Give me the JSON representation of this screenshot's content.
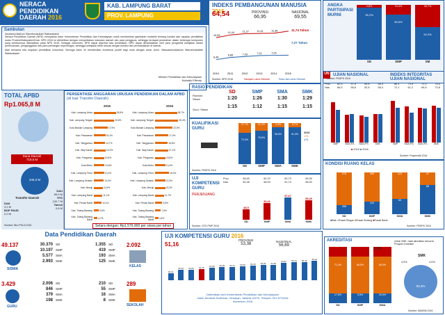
{
  "header": {
    "l1": "NERACA",
    "l2": "PENDIDIKAN",
    "l3": "DAERAH",
    "year": "2016",
    "kab": "KAB. LAMPUNG BARAT",
    "prov": "PROV. LAMPUNG"
  },
  "sambutan": {
    "title": "Sambutan",
    "p1": "Assalamu'alaikum Warrahmatullahi Wabarakatuh",
    "p2": "Neraca Pendidikan Daerah (NPD) merupakan Aktor Kementerian Pendidikan dan Kebudayaan untuk memberikan gambaran mutakhir tentang kondisi dan capaian pendidikan suatu Provinsi/Kabupaten/Kota. NPD 2016 ini diterbitkan dengan menyediakan masukan daerah dan para pengguna, sehingga terdapat perubahan dalam beberapa komponen yang sebelumnya ditampilkan pada NPD 2015. Sebagai instrumen, NPD dapat diperinci tata pendidikan, NPD dapat dimanfaatkan oleh para pengambil kebijakan dalam perencanaan, penganggaran dan para pemangku kepentingan, sehingga kebijakan lebih sesuai dengan kondisi dan permasalahan di daerah.",
    "p3": "Mari bersama kita majukan pendidikan Indonesia. Semoga Aktor ini memberikan kontribusi positif bagi mutu dengan amal. Amin. Wassalamu'alaikum Warrahmatullahi Wabarakatuh",
    "sig1": "Menteri Pendidikan dan Kebudayaan",
    "sig2": "Muhadjir Effendy"
  },
  "ipm": {
    "title": "INDEKS PEMBANGUNAN MANUSIA",
    "year": "2015",
    "kab_value": "64,54",
    "prov_label": "PROVINSI",
    "prov_value": "66,95",
    "nas_label": "NASIONAL",
    "nas_value": "69,55",
    "nas_right": "11,74 Tahun",
    "prov_right": "7,27 Tahun",
    "legend1": "Harapan Lama Sekolah",
    "legend2": "Rata-rata Lama Sekolah",
    "source": "Sumber: BPS 2016",
    "years": [
      "2010",
      "2011",
      "2012",
      "2013",
      "2014",
      "2015"
    ],
    "hls": [
      10.53,
      11.04,
      11.27,
      11.31,
      11.36,
      11.74
    ],
    "rls": [
      6.46,
      6.85,
      7.03,
      7.21,
      7.25,
      7.27
    ],
    "hls_labels": [
      "10,53",
      "11,04",
      "11,27",
      "11,31",
      "11,36"
    ],
    "rls_labels": [
      "6,46",
      "6,85",
      "7,03",
      "7,21",
      "7,25"
    ]
  },
  "apm": {
    "title1": "ANGKA",
    "title2": "PARTISIPASI",
    "title3": "MURNI",
    "cats": [
      "SD",
      "SMP",
      "SM"
    ],
    "vals": [
      "95,2%",
      "80,6%",
      "54,3%"
    ],
    "top": [
      "4,8%",
      "19,4%",
      "45,7%"
    ],
    "source": "Sumber: PDSPK 2016"
  },
  "total": {
    "title": "TOTAL APBD",
    "value": "Rp1.065,8 M",
    "dana": "Dana Daerah",
    "dana_val": "719,5 M",
    "transfer": "Transfer Daerah",
    "transfer_val": "346,3 M",
    "dau_label": "DAU",
    "dau": "89,9 M",
    "tpg_label": "TPG",
    "tpg": "132,7 M",
    "dak_label": "DAK",
    "dak": "3,2 M",
    "tamsil_label": "Tamsil",
    "tamsil": "0,8 M",
    "bop_label": "BOP PAUD",
    "bop": "2,0 M",
    "source": "Sumber: Biro PKLN 2016"
  },
  "pers": {
    "title": "PERSENTASE ANGGARAN URUSAN PENDIDIKAN DALAM APBD",
    "subtitle": "(di luar Transfer Daerah)",
    "y2015": "2015",
    "y2016": "2016",
    "footer": "Setara dengan: Rp1.576.900 per siswa per tahun",
    "left": [
      [
        "Kab. Lampung Utara",
        "28,8%"
      ],
      [
        "Kab. Lampung Tengah",
        "26,6%"
      ],
      [
        "Kota Bandar Lampung",
        "17,9%"
      ],
      [
        "Kab. Pesawaran",
        "15,1%"
      ],
      [
        "Kab. Tanggamus",
        "14,7%"
      ],
      [
        "Kab. Way Kanan",
        "15,3%"
      ],
      [
        "Kab. Pringsewu",
        "13,5%"
      ],
      [
        "Kota Metro",
        "13,8%"
      ],
      [
        "Kab. Lampung Timur",
        "13,4%"
      ],
      [
        "Kab. Lampung Selatan",
        "13,0%"
      ],
      [
        "Kab. Mesuji",
        "11,8%"
      ],
      [
        "Kab. Lampung Barat",
        "11,1%"
      ],
      [
        "Kab. Pesisir Barat",
        "10,1%"
      ],
      [
        "Kab. Tulang Bawang",
        "6,5%"
      ],
      [
        "Kab. Tulang Bawang Barat",
        "4,7%"
      ]
    ],
    "right": [
      [
        "Kab. Lampung Utara",
        "28,7%"
      ],
      [
        "Kab. Lampung Tengah",
        "30,4%"
      ],
      [
        "Kota Bandar Lampung",
        "22,9%"
      ],
      [
        "Kab. Pesawaran",
        "17,4%"
      ],
      [
        "Kab. Tanggamus",
        "16,6%"
      ],
      [
        "Kab. Way Kanan",
        "17,1%"
      ],
      [
        "Kab. Pringsewu",
        "13,6%"
      ],
      [
        "Kota Metro",
        "13,4%"
      ],
      [
        "Kab. Lampung Timur",
        "18,2%"
      ],
      [
        "Kab. Lampung Selatan",
        "13,3%"
      ],
      [
        "Kab. Mesuji",
        "13,2%"
      ],
      [
        "Kab. Lampung Barat",
        "11,7%"
      ],
      [
        "Kab. Pesisir Barat",
        "9,5%"
      ],
      [
        "Kab. Tulang Bawang",
        "7,6%"
      ],
      [
        "Kab. Tulang Bawang Barat",
        "4,4%"
      ]
    ]
  },
  "rasio": {
    "title": "RASIO PENDIDIKAN",
    "row1": "Rombel: Siswa",
    "row2": "Guru: Siswa",
    "cats": [
      "SD",
      "SMP",
      "SMA",
      "SMK"
    ],
    "r1": [
      "1:20",
      "1:26",
      "1:30",
      "1:29"
    ],
    "r2": [
      "1:15",
      "1:12",
      "1:15",
      "1:15"
    ]
  },
  "kual": {
    "title1": "KUALIFIKASI",
    "title2": "GURU",
    "cats": [
      "SD",
      "SMP",
      "SMA",
      "SMK"
    ],
    "top": [
      "27,7%",
      "21,2%",
      "3,4%",
      "8,7%"
    ],
    "bot": [
      "72,3%",
      "78,8%",
      "96,6%",
      "91,3%"
    ],
    "l1": "2016",
    "l2": "<S1",
    "l3": "≥S1",
    "source": "Sumber: PDSPK 2016"
  },
  "ukg": {
    "title1": "UJI",
    "title2": "KOMPETENSI",
    "title3": "GURU",
    "sub": "PERJENJANG",
    "prov_label": "Prov.",
    "prov": [
      "56,69",
      "60,70",
      "60,73",
      "59,39"
    ],
    "nas_label": "Nas.",
    "nas": [
      "54,38",
      "58,93",
      "61,74",
      "58,30"
    ],
    "vals": [
      "48,5",
      "53,41",
      "57,67",
      "55,49"
    ],
    "cats": [
      "SD",
      "SMP",
      "SMA",
      "SMK"
    ],
    "source": "Sumber: GTK-PMP 2016"
  },
  "un": {
    "title": "UJIAN NASIONAL",
    "title2": "INDEKS INTEGRITAS UJIAN NASIONAL",
    "prov": "Prov.",
    "nas": "Nas.",
    "prov_vals": [
      "82,5",
      "57,5",
      "55,8",
      "58,3"
    ],
    "nas_vals": [
      "66,9",
      "58,8",
      "52,8",
      "58,3"
    ],
    "prov2": [
      "86,4",
      "73,9",
      "72,0",
      "76,4"
    ],
    "nas2": [
      "72,1",
      "61,2",
      "69,8",
      "70,8"
    ],
    "cats": [
      "SMP",
      "SMA IPA",
      "SMA IPS",
      "SMK"
    ],
    "l15": "2015",
    "l16": "2016",
    "source": "Sumber: Puspendik 2016"
  },
  "kond": {
    "title": "KONDISI RUANG KELAS",
    "cats": [
      "SD",
      "SMP",
      "SMA",
      "SMK"
    ],
    "baik": [
      "265",
      "120",
      "69",
      "88"
    ],
    "rusak": [
      "978",
      "289",
      "123",
      "37"
    ],
    "l1": "Baik",
    "l2": "Rusak Ringan",
    "l3": "Rusak Sedang",
    "l4": "Rusak Berat",
    "source": "Sumber: PDSPK 2016"
  },
  "dpd": {
    "title": "Data Pendidikan Daerah",
    "siswa_total": "49.137",
    "siswa_label": "SISWA",
    "siswa": [
      [
        "SD",
        "30.370"
      ],
      [
        "SMP",
        "10.197"
      ],
      [
        "SMA",
        "5.577"
      ],
      [
        "SMK",
        "2.993"
      ]
    ],
    "kelas_total": "2.092",
    "kelas_label": "KELAS",
    "kelas": [
      [
        "SD",
        "1.355"
      ],
      [
        "SMP",
        "419"
      ],
      [
        "SMA",
        "193"
      ],
      [
        "SMK",
        "125"
      ]
    ],
    "guru_total": "3.429",
    "guru_label": "GURU",
    "guru": [
      [
        "SD",
        "2.006"
      ],
      [
        "SMP",
        "846"
      ],
      [
        "SMA",
        "379"
      ],
      [
        "SMK",
        "198"
      ]
    ],
    "sekolah_total": "289",
    "sekolah_label": "SEKOLAH",
    "sekolah": [
      [
        "SD",
        "210"
      ],
      [
        "SMP",
        "55"
      ],
      [
        "SMA",
        "16"
      ],
      [
        "SMK",
        "8"
      ]
    ]
  },
  "ukd": {
    "title": "UJI KOMPETENSI GURU",
    "year": "2016",
    "kab": "51,16",
    "prov_label": "PROVINSI",
    "prov": "53,38",
    "nas_label": "NASIONAL",
    "nas": "56,69",
    "vals": [
      48.42,
      50.33,
      50.63,
      51.16,
      51.68,
      52.09,
      52.17,
      52.5,
      53.18,
      53.65,
      53.65,
      54.91,
      55.44,
      55.49,
      56.24
    ],
    "labels": [
      "48,42",
      "50,33",
      "50,63",
      "51,16",
      "51,68",
      "52,09",
      "52,17",
      "52,50",
      "53,18",
      "53,65",
      "53,65",
      "54,91",
      "55,44",
      "55,49",
      "56,24"
    ],
    "footer1": "Diterbitkan oleh Kementerian Pendidikan dan Kebudayaan",
    "footer2": "Jalan Jenderal Sudirman, Senayan, Jakarta 10270, Telepon: 021-5711144",
    "footer3": "November 2016"
  },
  "akr": {
    "title": "AKREDITASI",
    "note": "Untuk SMK, hasil akreditasi menurut Program Keahlian",
    "cats": [
      "SD",
      "SMP",
      "SMA"
    ],
    "smk": "SMK",
    "A": [
      "17,6%",
      "5,5%",
      "20,0%"
    ],
    "B": [
      "71,4%",
      "68,5%",
      "60,0%"
    ],
    "C": [
      "",
      "",
      "2,0%"
    ],
    "smkA": "4,9%",
    "smkB": "93,3%",
    "smkC": "4,9%",
    "source": "Sumber: BANSM 2016"
  },
  "colors": {
    "blue": "#1f5fa8",
    "red": "#c00000",
    "yellow": "#f3c300",
    "orange": "#e36c0a"
  }
}
